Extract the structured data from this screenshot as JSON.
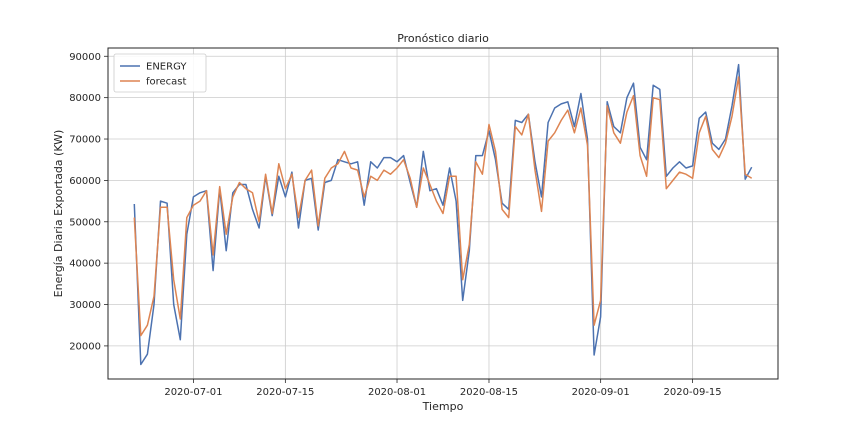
{
  "chart_data": {
    "type": "line",
    "title": "Pronóstico diario",
    "xlabel": "Tiempo",
    "ylabel": "Energía Diaria Exportada (KW)",
    "x_start": "2020-06-22",
    "x_end": "2020-09-24",
    "xlim": [
      "2020-06-18",
      "2020-09-28"
    ],
    "ylim": [
      12000,
      92000
    ],
    "x_ticks": [
      "2020-07-01",
      "2020-07-15",
      "2020-08-01",
      "2020-08-15",
      "2020-09-01",
      "2020-09-15"
    ],
    "y_ticks": [
      20000,
      30000,
      40000,
      50000,
      60000,
      70000,
      80000,
      90000
    ],
    "grid": true,
    "legend_position": "top-left",
    "series": [
      {
        "name": "ENERGY",
        "color": "#4c72b0",
        "values": [
          54300,
          15500,
          18000,
          30000,
          55000,
          54500,
          30000,
          21500,
          47000,
          56000,
          57000,
          57500,
          38200,
          58000,
          43000,
          57000,
          59000,
          59000,
          53000,
          48500,
          61000,
          51500,
          61000,
          56000,
          62000,
          48500,
          60000,
          60500,
          48000,
          59500,
          60000,
          65000,
          64500,
          64000,
          64500,
          54000,
          64500,
          63000,
          65500,
          65500,
          64500,
          66000,
          59500,
          53500,
          67000,
          57500,
          58000,
          54000,
          63000,
          55000,
          31000,
          43000,
          66000,
          66000,
          72000,
          65000,
          54500,
          53000,
          74500,
          74000,
          76000,
          64500,
          56000,
          74000,
          77500,
          78500,
          79000,
          73000,
          81000,
          70000,
          17800,
          27000,
          79000,
          73000,
          71500,
          80000,
          83500,
          68000,
          65000,
          83000,
          82000,
          61000,
          63000,
          64500,
          63000,
          63500,
          75000,
          76500,
          69000,
          67500,
          70000,
          78000,
          88000,
          60300,
          63200
        ]
      },
      {
        "name": "forecast",
        "color": "#dd8452",
        "values": [
          51000,
          22500,
          25000,
          32000,
          53500,
          53500,
          36000,
          26500,
          51000,
          54000,
          55000,
          57500,
          42000,
          58500,
          47000,
          56000,
          59500,
          58000,
          57000,
          50000,
          61500,
          52000,
          64000,
          58000,
          61500,
          51000,
          60000,
          62500,
          49000,
          60500,
          63000,
          64000,
          67000,
          63000,
          62500,
          56000,
          61000,
          60000,
          62500,
          61500,
          63000,
          65000,
          60500,
          53500,
          63000,
          59000,
          55000,
          52000,
          61000,
          61000,
          36000,
          44500,
          64500,
          61500,
          73500,
          67000,
          53000,
          51000,
          73000,
          71000,
          76000,
          62500,
          52500,
          69500,
          71500,
          74500,
          77000,
          71500,
          77500,
          68500,
          25000,
          31000,
          78000,
          71500,
          69000,
          76500,
          80500,
          66000,
          61000,
          80000,
          79500,
          58000,
          60000,
          62000,
          61500,
          60500,
          71500,
          75500,
          67500,
          65500,
          69000,
          75500,
          85000,
          61500,
          60500
        ]
      }
    ]
  }
}
